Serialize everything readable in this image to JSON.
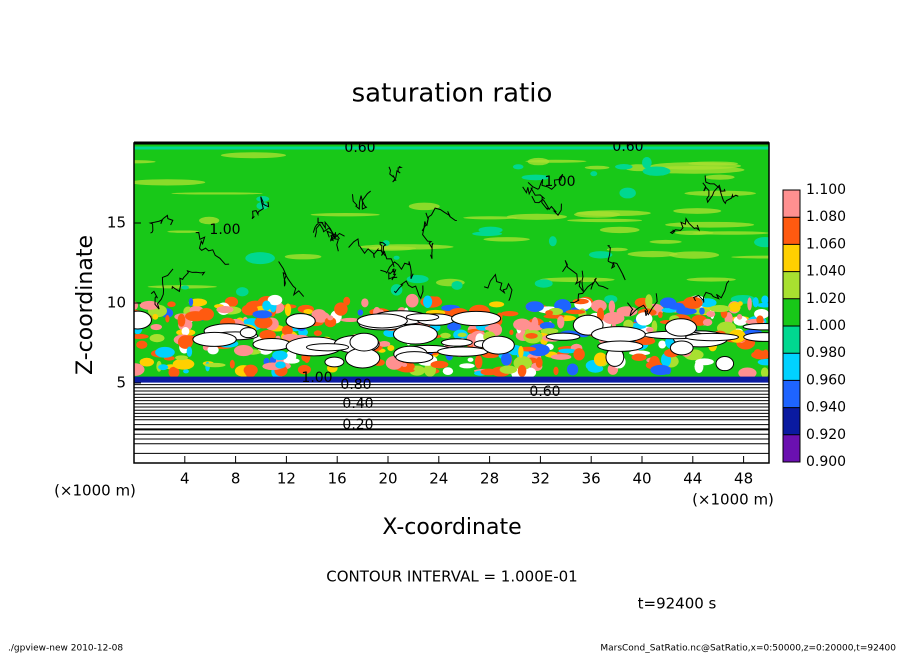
{
  "chart_data": {
    "type": "contour",
    "title": "saturation ratio",
    "xlabel": "X-coordinate",
    "ylabel": "Z-coordinate",
    "x_unit": "(×1000 m)",
    "xlim": [
      0,
      50
    ],
    "xticks": [
      4,
      8,
      12,
      16,
      20,
      24,
      28,
      32,
      36,
      40,
      44,
      48
    ],
    "ylim": [
      0,
      20
    ],
    "yticks": [
      5,
      10,
      15
    ],
    "contour_labels": [
      "0.60",
      "0.60",
      "1.00",
      "1.00",
      "1.00",
      "0.80",
      "0.60",
      "0.40",
      "0.20"
    ],
    "contour_interval": "CONTOUR INTERVAL = 1.000E-01",
    "time": "t=92400 s",
    "footer_left": "./gpview-new  2010-12-08",
    "footer_right": "MarsCond_SatRatio.nc@SatRatio,x=0:50000,z=0:20000,t=92400",
    "colorbar": {
      "ticks": [
        {
          "value": 0.9,
          "label": "0.900"
        },
        {
          "value": 0.92,
          "label": "0.920"
        },
        {
          "value": 0.94,
          "label": "0.940"
        },
        {
          "value": 0.96,
          "label": "0.960"
        },
        {
          "value": 0.98,
          "label": "0.980"
        },
        {
          "value": 1.0,
          "label": "1.000"
        },
        {
          "value": 1.02,
          "label": "1.020"
        },
        {
          "value": 1.04,
          "label": "1.040"
        },
        {
          "value": 1.06,
          "label": "1.060"
        },
        {
          "value": 1.08,
          "label": "1.080"
        },
        {
          "value": 1.1,
          "label": "1.100"
        }
      ],
      "colors": [
        "#6a10b0",
        "#0a1aa0",
        "#1e64ff",
        "#00d2ff",
        "#00d890",
        "#18c818",
        "#a8e030",
        "#ffd000",
        "#ff5a10",
        "#ff9090"
      ]
    }
  }
}
